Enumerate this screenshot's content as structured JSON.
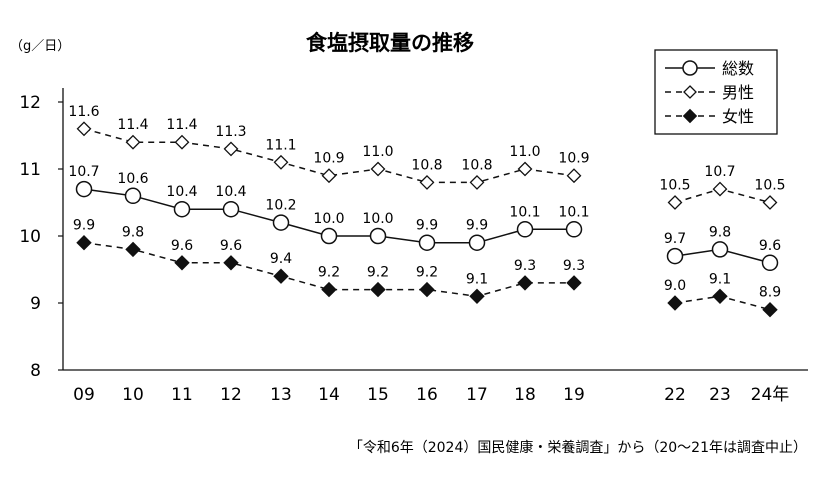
{
  "chart_data": {
    "type": "line",
    "title": "食塩摂取量の推移",
    "unit_label": "（g／日）",
    "source_note": "「令和6年（2024）国民健康・栄養調査」から（20〜21年は調査中止）",
    "categories": [
      "09",
      "10",
      "11",
      "12",
      "13",
      "14",
      "15",
      "16",
      "17",
      "18",
      "19",
      "22",
      "23",
      "24年"
    ],
    "ylim": [
      8,
      12
    ],
    "yticks": [
      "8",
      "9",
      "10",
      "11",
      "12"
    ],
    "grid": false,
    "legend_position": "top-right",
    "series": [
      {
        "name": "総数",
        "style": "solid-open-circle",
        "values": [
          10.7,
          10.6,
          10.4,
          10.4,
          10.2,
          10.0,
          10.0,
          9.9,
          9.9,
          10.1,
          10.1,
          9.7,
          9.8,
          9.6
        ],
        "labels": [
          "10.7",
          "10.6",
          "10.4",
          "10.4",
          "10.2",
          "10.0",
          "10.0",
          "9.9",
          "9.9",
          "10.1",
          "10.1",
          "9.7",
          "9.8",
          "9.6"
        ]
      },
      {
        "name": "男性",
        "style": "dashed-open-diamond",
        "values": [
          11.6,
          11.4,
          11.4,
          11.3,
          11.1,
          10.9,
          11.0,
          10.8,
          10.8,
          11.0,
          10.9,
          10.5,
          10.7,
          10.5
        ],
        "labels": [
          "11.6",
          "11.4",
          "11.4",
          "11.3",
          "11.1",
          "10.9",
          "11.0",
          "10.8",
          "10.8",
          "11.0",
          "10.9",
          "10.5",
          "10.7",
          "10.5"
        ]
      },
      {
        "name": "女性",
        "style": "dashed-filled-diamond",
        "values": [
          9.9,
          9.8,
          9.6,
          9.6,
          9.4,
          9.2,
          9.2,
          9.2,
          9.1,
          9.3,
          9.3,
          9.0,
          9.1,
          8.9
        ],
        "labels": [
          "9.9",
          "9.8",
          "9.6",
          "9.6",
          "9.4",
          "9.2",
          "9.2",
          "9.2",
          "9.1",
          "9.3",
          "9.3",
          "9.0",
          "9.1",
          "8.9"
        ]
      }
    ],
    "segments": [
      [
        0,
        10
      ],
      [
        11,
        13
      ]
    ]
  }
}
